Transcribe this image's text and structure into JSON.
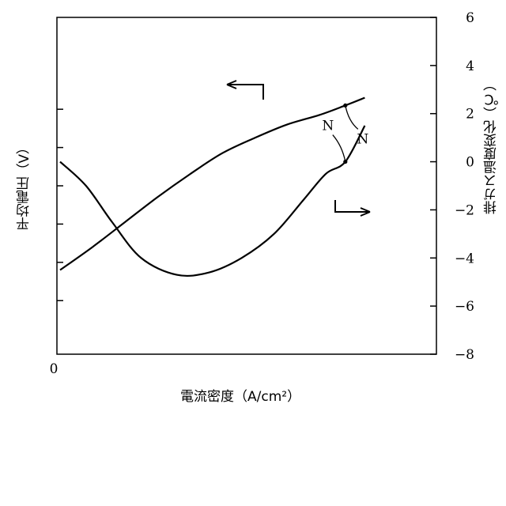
{
  "chart_data": {
    "type": "line",
    "title": "",
    "xlabel": "電流密度（A/cm²）",
    "ylabel_left": "平均電圧（V）",
    "ylabel_right": "排ガス温度変化（℃）",
    "x_ticks": [
      "0"
    ],
    "right_ticks": [
      "6",
      "4",
      "2",
      "0",
      "−2",
      "−4",
      "−6",
      "−8"
    ],
    "right_tick_values": [
      6,
      4,
      2,
      0,
      -2,
      -4,
      -6,
      -8
    ],
    "ylim_right": [
      -8,
      6
    ],
    "left_tick_values": [
      4,
      2,
      0,
      -2,
      -4,
      -6
    ],
    "xlim": [
      0,
      1
    ],
    "grid": false,
    "series": [
      {
        "axis": "left",
        "marker": "N",
        "points": [
          [
            0.0,
            -4.4
          ],
          [
            0.1,
            -3.2
          ],
          [
            0.2,
            -1.9
          ],
          [
            0.3,
            -0.6
          ],
          [
            0.4,
            0.6
          ],
          [
            0.5,
            1.7
          ],
          [
            0.6,
            2.5
          ],
          [
            0.7,
            3.2
          ],
          [
            0.8,
            3.7
          ],
          [
            0.88,
            4.2
          ],
          [
            0.94,
            4.6
          ]
        ],
        "marker_point": [
          0.88,
          4.2
        ]
      },
      {
        "axis": "right",
        "marker": "N",
        "points": [
          [
            0.0,
            0.0
          ],
          [
            0.08,
            -1.0
          ],
          [
            0.16,
            -2.5
          ],
          [
            0.25,
            -4.0
          ],
          [
            0.36,
            -4.7
          ],
          [
            0.46,
            -4.6
          ],
          [
            0.56,
            -4.0
          ],
          [
            0.66,
            -3.0
          ],
          [
            0.75,
            -1.6
          ],
          [
            0.82,
            -0.5
          ],
          [
            0.88,
            0.0
          ],
          [
            0.94,
            1.5
          ]
        ],
        "marker_point": [
          0.88,
          0.0
        ]
      }
    ]
  }
}
